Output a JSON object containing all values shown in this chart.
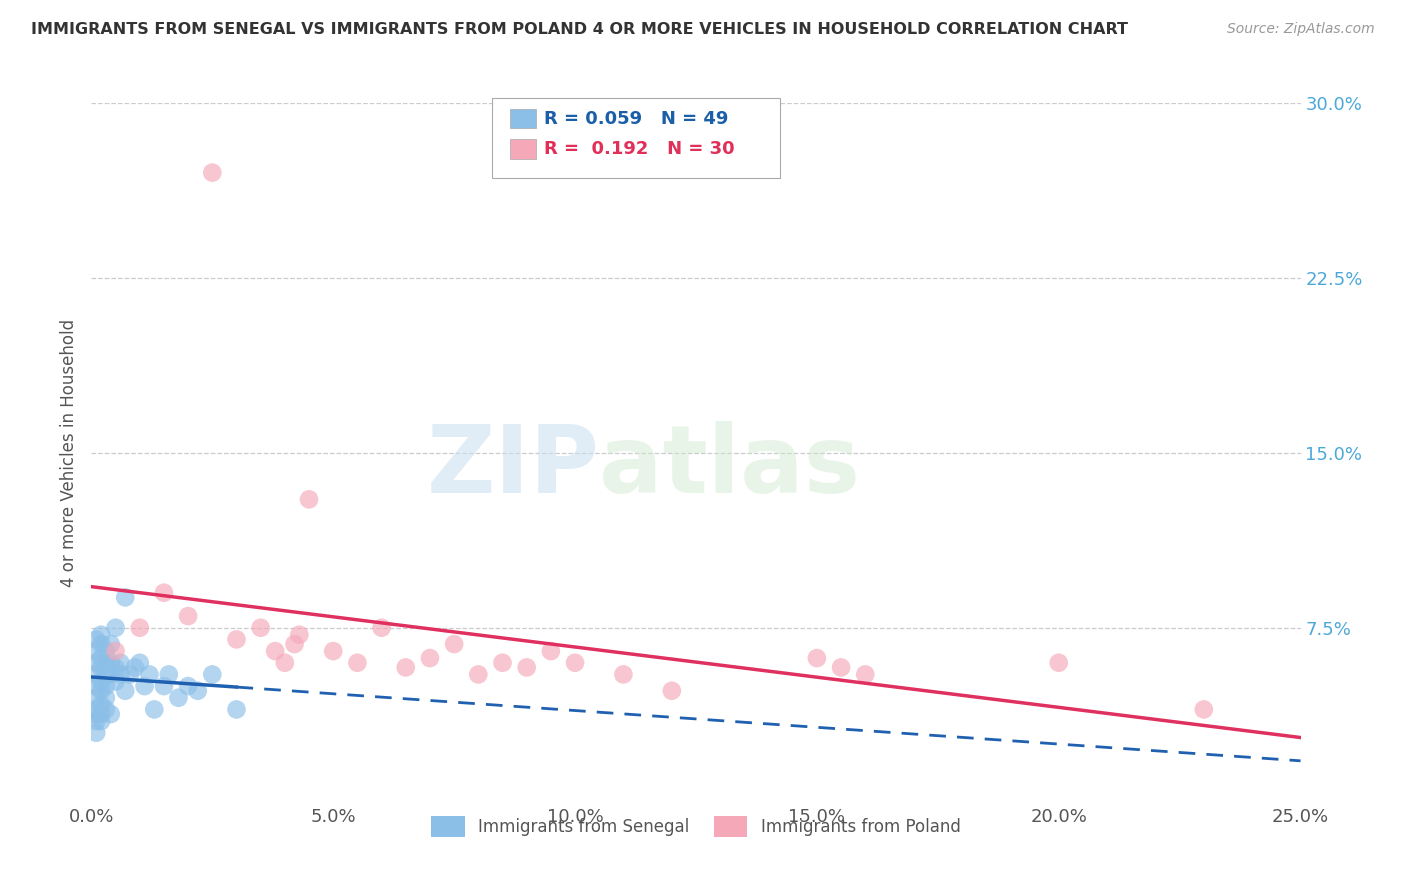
{
  "title": "IMMIGRANTS FROM SENEGAL VS IMMIGRANTS FROM POLAND 4 OR MORE VEHICLES IN HOUSEHOLD CORRELATION CHART",
  "source": "Source: ZipAtlas.com",
  "ylabel": "4 or more Vehicles in Household",
  "xlim": [
    0.0,
    0.25
  ],
  "ylim": [
    0.0,
    0.3
  ],
  "xticks": [
    0.0,
    0.05,
    0.1,
    0.15,
    0.2,
    0.25
  ],
  "yticks": [
    0.0,
    0.075,
    0.15,
    0.225,
    0.3
  ],
  "xtick_labels": [
    "0.0%",
    "5.0%",
    "10.0%",
    "15.0%",
    "20.0%",
    "25.0%"
  ],
  "ytick_labels": [
    "",
    "7.5%",
    "15.0%",
    "22.5%",
    "30.0%"
  ],
  "color_senegal": "#8bbfe8",
  "color_poland": "#f5a8b8",
  "line_color_senegal": "#2060b0",
  "line_color_poland": "#e03060",
  "R_senegal": 0.059,
  "N_senegal": 49,
  "R_poland": 0.192,
  "N_poland": 30,
  "legend_label_senegal": "Immigrants from Senegal",
  "legend_label_poland": "Immigrants from Poland",
  "watermark_zip": "ZIP",
  "watermark_atlas": "atlas",
  "background_color": "#ffffff",
  "grid_color": "#cccccc",
  "senegal_x": [
    0.001,
    0.001,
    0.001,
    0.001,
    0.001,
    0.001,
    0.001,
    0.001,
    0.001,
    0.001,
    0.002,
    0.002,
    0.002,
    0.002,
    0.002,
    0.002,
    0.002,
    0.002,
    0.002,
    0.003,
    0.003,
    0.003,
    0.003,
    0.003,
    0.003,
    0.004,
    0.004,
    0.004,
    0.004,
    0.005,
    0.005,
    0.005,
    0.006,
    0.006,
    0.007,
    0.007,
    0.008,
    0.009,
    0.01,
    0.011,
    0.012,
    0.013,
    0.015,
    0.016,
    0.018,
    0.02,
    0.022,
    0.025,
    0.03
  ],
  "senegal_y": [
    0.045,
    0.05,
    0.055,
    0.06,
    0.065,
    0.04,
    0.035,
    0.03,
    0.07,
    0.038,
    0.048,
    0.052,
    0.058,
    0.062,
    0.068,
    0.042,
    0.035,
    0.072,
    0.038,
    0.05,
    0.055,
    0.06,
    0.065,
    0.04,
    0.045,
    0.055,
    0.06,
    0.068,
    0.038,
    0.052,
    0.058,
    0.075,
    0.055,
    0.06,
    0.088,
    0.048,
    0.055,
    0.058,
    0.06,
    0.05,
    0.055,
    0.04,
    0.05,
    0.055,
    0.045,
    0.05,
    0.048,
    0.055,
    0.04
  ],
  "poland_x": [
    0.005,
    0.01,
    0.015,
    0.02,
    0.025,
    0.03,
    0.035,
    0.038,
    0.04,
    0.042,
    0.043,
    0.045,
    0.05,
    0.055,
    0.06,
    0.065,
    0.07,
    0.075,
    0.08,
    0.085,
    0.09,
    0.095,
    0.1,
    0.11,
    0.12,
    0.15,
    0.155,
    0.16,
    0.2,
    0.23
  ],
  "poland_y": [
    0.065,
    0.075,
    0.09,
    0.08,
    0.27,
    0.07,
    0.075,
    0.065,
    0.06,
    0.068,
    0.072,
    0.13,
    0.065,
    0.06,
    0.075,
    0.058,
    0.062,
    0.068,
    0.055,
    0.06,
    0.058,
    0.065,
    0.06,
    0.055,
    0.048,
    0.062,
    0.058,
    0.055,
    0.06,
    0.04
  ]
}
